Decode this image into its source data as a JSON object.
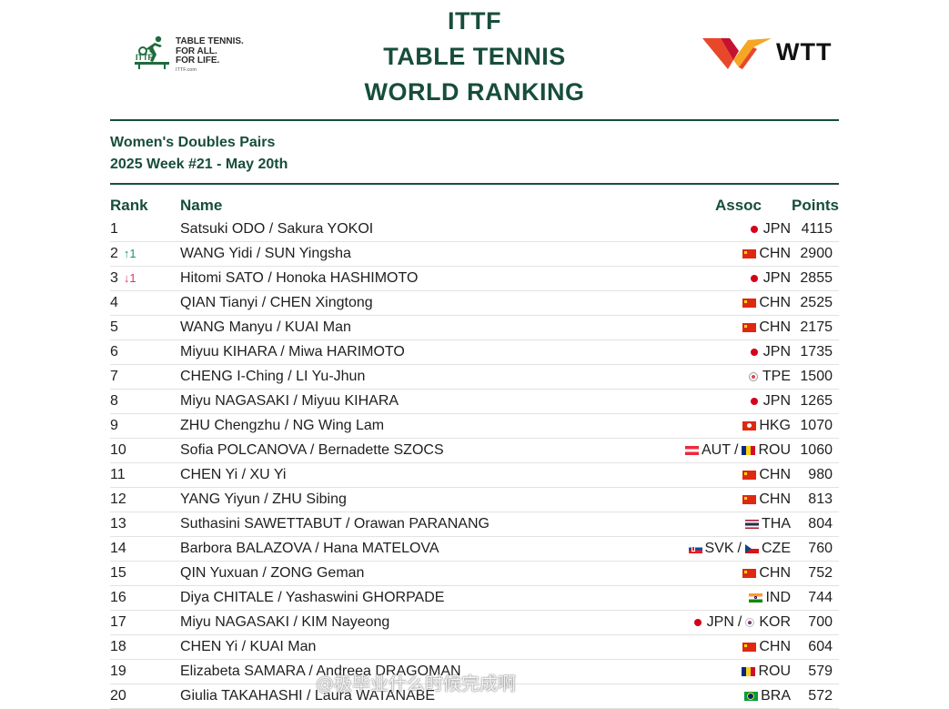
{
  "header": {
    "title_lines": [
      "ITTF",
      "TABLE TENNIS",
      "WORLD RANKING"
    ],
    "ittf_logo": {
      "lines": [
        "TABLE TENNIS.",
        "FOR ALL.",
        "FOR LIFE."
      ],
      "url": "ITTF.com",
      "color": "#1f6b3d",
      "icon": "table-tennis-player-icon"
    },
    "wtt_logo": {
      "text": "WTT",
      "colors": [
        "#e8472b",
        "#c41230",
        "#f6a623"
      ],
      "icon": "wtt-chevron-icon"
    }
  },
  "subtitle": {
    "category": "Women's Doubles Pairs",
    "week": "2025 Week #21 - May 20th"
  },
  "colors": {
    "accent": "#174d3c",
    "up": "#1a9a57",
    "down": "#d8386a"
  },
  "columns": {
    "rank": "Rank",
    "name": "Name",
    "assoc": "Assoc",
    "points": "Points"
  },
  "rows": [
    {
      "rank": "1",
      "move": "",
      "name": "Satsuki ODO / Sakura YOKOI",
      "assoc": [
        {
          "code": "JPN",
          "flag": "jpn"
        }
      ],
      "points": "4115"
    },
    {
      "rank": "2",
      "move": "↑1",
      "name": "WANG Yidi / SUN Yingsha",
      "assoc": [
        {
          "code": "CHN",
          "flag": "chn"
        }
      ],
      "points": "2900"
    },
    {
      "rank": "3",
      "move": "↓1",
      "name": "Hitomi SATO / Honoka HASHIMOTO",
      "assoc": [
        {
          "code": "JPN",
          "flag": "jpn"
        }
      ],
      "points": "2855"
    },
    {
      "rank": "4",
      "move": "",
      "name": "QIAN Tianyi / CHEN Xingtong",
      "assoc": [
        {
          "code": "CHN",
          "flag": "chn"
        }
      ],
      "points": "2525"
    },
    {
      "rank": "5",
      "move": "",
      "name": "WANG Manyu / KUAI Man",
      "assoc": [
        {
          "code": "CHN",
          "flag": "chn"
        }
      ],
      "points": "2175"
    },
    {
      "rank": "6",
      "move": "",
      "name": "Miyuu KIHARA / Miwa HARIMOTO",
      "assoc": [
        {
          "code": "JPN",
          "flag": "jpn"
        }
      ],
      "points": "1735"
    },
    {
      "rank": "7",
      "move": "",
      "name": "CHENG I-Ching / LI Yu-Jhun",
      "assoc": [
        {
          "code": "TPE",
          "flag": "tpe"
        }
      ],
      "points": "1500"
    },
    {
      "rank": "8",
      "move": "",
      "name": "Miyu NAGASAKI / Miyuu KIHARA",
      "assoc": [
        {
          "code": "JPN",
          "flag": "jpn"
        }
      ],
      "points": "1265"
    },
    {
      "rank": "9",
      "move": "",
      "name": "ZHU Chengzhu / NG Wing Lam",
      "assoc": [
        {
          "code": "HKG",
          "flag": "hkg"
        }
      ],
      "points": "1070"
    },
    {
      "rank": "10",
      "move": "",
      "name": "Sofia POLCANOVA / Bernadette SZOCS",
      "assoc": [
        {
          "code": "AUT",
          "flag": "aut"
        },
        {
          "code": "ROU",
          "flag": "rou"
        }
      ],
      "points": "1060"
    },
    {
      "rank": "11",
      "move": "",
      "name": "CHEN Yi / XU Yi",
      "assoc": [
        {
          "code": "CHN",
          "flag": "chn"
        }
      ],
      "points": "980"
    },
    {
      "rank": "12",
      "move": "",
      "name": "YANG Yiyun / ZHU Sibing",
      "assoc": [
        {
          "code": "CHN",
          "flag": "chn"
        }
      ],
      "points": "813"
    },
    {
      "rank": "13",
      "move": "",
      "name": "Suthasini SAWETTABUT / Orawan PARANANG",
      "assoc": [
        {
          "code": "THA",
          "flag": "tha"
        }
      ],
      "points": "804"
    },
    {
      "rank": "14",
      "move": "",
      "name": "Barbora BALAZOVA / Hana MATELOVA",
      "assoc": [
        {
          "code": "SVK",
          "flag": "svk"
        },
        {
          "code": "CZE",
          "flag": "cze"
        }
      ],
      "points": "760"
    },
    {
      "rank": "15",
      "move": "",
      "name": "QIN Yuxuan / ZONG Geman",
      "assoc": [
        {
          "code": "CHN",
          "flag": "chn"
        }
      ],
      "points": "752"
    },
    {
      "rank": "16",
      "move": "",
      "name": "Diya CHITALE / Yashaswini GHORPADE",
      "assoc": [
        {
          "code": "IND",
          "flag": "ind"
        }
      ],
      "points": "744"
    },
    {
      "rank": "17",
      "move": "",
      "name": "Miyu NAGASAKI / KIM Nayeong",
      "assoc": [
        {
          "code": "JPN",
          "flag": "jpn"
        },
        {
          "code": "KOR",
          "flag": "kor"
        }
      ],
      "points": "700"
    },
    {
      "rank": "18",
      "move": "",
      "name": "CHEN Yi / KUAI Man",
      "assoc": [
        {
          "code": "CHN",
          "flag": "chn"
        }
      ],
      "points": "604"
    },
    {
      "rank": "19",
      "move": "",
      "name": "Elizabeta SAMARA / Andreea DRAGOMAN",
      "assoc": [
        {
          "code": "ROU",
          "flag": "rou"
        }
      ],
      "points": "579"
    },
    {
      "rank": "20",
      "move": "",
      "name": "Giulia TAKAHASHI / Laura WATANABE",
      "assoc": [
        {
          "code": "BRA",
          "flag": "bra"
        }
      ],
      "points": "572"
    }
  ],
  "watermark": "@极毕业什么时候完成啊"
}
